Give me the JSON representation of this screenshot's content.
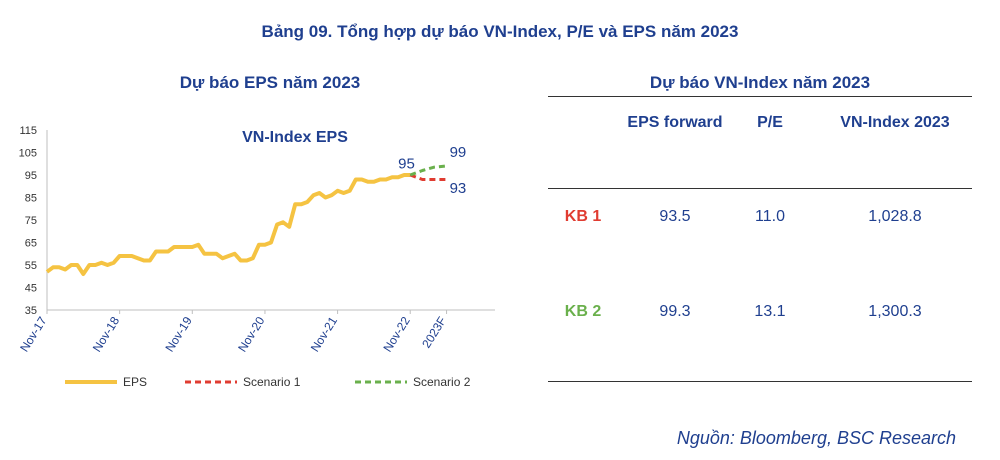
{
  "title": "Bảng 09. Tổng hợp dự báo VN-Index, P/E và EPS năm 2023",
  "chart_data": {
    "type": "line",
    "heading": "Dự báo EPS năm 2023",
    "title": "VN-Index EPS",
    "ylim": [
      35,
      115
    ],
    "yticks": [
      35,
      45,
      55,
      65,
      75,
      85,
      95,
      105,
      115
    ],
    "xlim": [
      0,
      74
    ],
    "xticks": [
      {
        "label": "Nov-17",
        "x": 0
      },
      {
        "label": "Nov-18",
        "x": 12
      },
      {
        "label": "Nov-19",
        "x": 24
      },
      {
        "label": "Nov-20",
        "x": 36
      },
      {
        "label": "Nov-21",
        "x": 48
      },
      {
        "label": "Nov-22",
        "x": 60
      },
      {
        "label": "2023F",
        "x": 66
      }
    ],
    "series": [
      {
        "name": "EPS",
        "color": "#f5c342",
        "style": "solid",
        "x": [
          0,
          1,
          2,
          3,
          4,
          5,
          6,
          7,
          8,
          9,
          10,
          11,
          12,
          13,
          14,
          15,
          16,
          17,
          18,
          19,
          20,
          21,
          22,
          23,
          24,
          25,
          26,
          27,
          28,
          29,
          30,
          31,
          32,
          33,
          34,
          35,
          36,
          37,
          38,
          39,
          40,
          41,
          42,
          43,
          44,
          45,
          46,
          47,
          48,
          49,
          50,
          51,
          52,
          53,
          54,
          55,
          56,
          57,
          58,
          59,
          60
        ],
        "values": [
          52,
          54,
          54,
          53,
          55,
          55,
          51,
          55,
          55,
          56,
          55,
          56,
          59,
          59,
          59,
          58,
          57,
          57,
          61,
          61,
          61,
          63,
          63,
          63,
          63,
          64,
          60,
          60,
          60,
          58,
          59,
          60,
          57,
          57,
          58,
          64,
          64,
          65,
          73,
          74,
          72,
          82,
          82,
          83,
          86,
          87,
          85,
          86,
          88,
          87,
          88,
          93,
          93,
          92,
          92,
          93,
          93,
          94,
          94,
          95,
          95
        ]
      },
      {
        "name": "Scenario 1",
        "color": "#e03c31",
        "style": "dashed",
        "x": [
          60,
          62,
          64,
          66
        ],
        "values": [
          95,
          93,
          93,
          93
        ]
      },
      {
        "name": "Scenario 2",
        "color": "#6ab04c",
        "style": "dashed",
        "x": [
          60,
          62,
          64,
          66
        ],
        "values": [
          95,
          97,
          98.5,
          99
        ]
      }
    ],
    "annotations": [
      {
        "text": "95",
        "x": 58,
        "y": 98
      },
      {
        "text": "99",
        "x": 66.5,
        "y": 103
      },
      {
        "text": "93",
        "x": 66.5,
        "y": 87
      }
    ],
    "grid": false,
    "legend_position": "bottom"
  },
  "table": {
    "heading": "Dự báo VN-Index năm 2023",
    "columns": [
      "EPS forward",
      "P/E",
      "VN-Index 2023"
    ],
    "rows": [
      {
        "label": "KB 1",
        "label_color": "#e03c31",
        "eps": "93.5",
        "pe": "11.0",
        "vnindex": "1,028.8"
      },
      {
        "label": "KB 2",
        "label_color": "#6ab04c",
        "eps": "99.3",
        "pe": "13.1",
        "vnindex": "1,300.3"
      }
    ]
  },
  "source": "Nguồn: Bloomberg, BSC Research"
}
